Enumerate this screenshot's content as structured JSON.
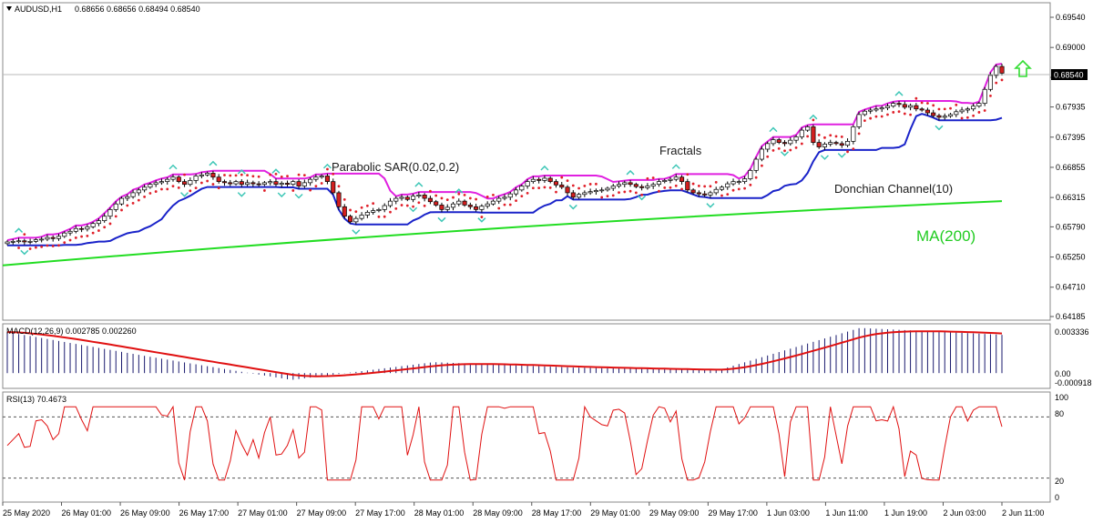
{
  "header": {
    "symbol": "AUDUSD,H1",
    "ohlc": "0.68656 0.68656 0.68494 0.68540"
  },
  "price_badge": "0.68540",
  "annotations": {
    "sar": "Parabolic SAR(0.02,0.2)",
    "fractals": "Fractals",
    "donchian": "Donchian Channel(10)",
    "ma": "MA(200)"
  },
  "macd_panel": {
    "label": "MACD(12,26,9) 0.002785 0.002260",
    "tick_top": "0.003336",
    "tick_zero": "0.00",
    "tick_bottom": "-0.000918"
  },
  "rsi_panel": {
    "label": "RSI(13) 70.4673",
    "ticks": [
      "100",
      "80",
      "20",
      "0"
    ]
  },
  "chart_data": {
    "type": "line",
    "price_ticks": [
      "0.69540",
      "0.69000",
      "0.68465",
      "0.67935",
      "0.67395",
      "0.66855",
      "0.66315",
      "0.65790",
      "0.65250",
      "0.64710",
      "0.64185"
    ],
    "x_ticks": [
      "25 May 2020",
      "26 May 01:00",
      "26 May 09:00",
      "26 May 17:00",
      "27 May 01:00",
      "27 May 09:00",
      "27 May 17:00",
      "28 May 01:00",
      "28 May 09:00",
      "28 May 17:00",
      "29 May 01:00",
      "29 May 09:00",
      "29 May 17:00",
      "1 Jun 03:00",
      "1 Jun 11:00",
      "1 Jun 19:00",
      "2 Jun 03:00",
      "2 Jun 11:00"
    ],
    "ylim": [
      0.64185,
      0.6954
    ],
    "close": [
      0.6552,
      0.6553,
      0.6554,
      0.6552,
      0.6553,
      0.6556,
      0.6557,
      0.656,
      0.6558,
      0.6562,
      0.6568,
      0.6571,
      0.6576,
      0.6575,
      0.6579,
      0.6585,
      0.659,
      0.6598,
      0.661,
      0.662,
      0.663,
      0.6633,
      0.664,
      0.6645,
      0.665,
      0.6655,
      0.6658,
      0.666,
      0.6664,
      0.6668,
      0.666,
      0.6655,
      0.6662,
      0.667,
      0.6672,
      0.6675,
      0.6668,
      0.666,
      0.6658,
      0.6656,
      0.666,
      0.6655,
      0.6658,
      0.6656,
      0.6655,
      0.6658,
      0.666,
      0.6655,
      0.6657,
      0.6655,
      0.666,
      0.6652,
      0.6658,
      0.6664,
      0.6668,
      0.667,
      0.666,
      0.664,
      0.6615,
      0.6598,
      0.6588,
      0.6594,
      0.66,
      0.6605,
      0.6608,
      0.661,
      0.6617,
      0.6625,
      0.663,
      0.6632,
      0.6628,
      0.6634,
      0.6636,
      0.663,
      0.6624,
      0.6618,
      0.661,
      0.6614,
      0.662,
      0.6625,
      0.6618,
      0.6615,
      0.661,
      0.6616,
      0.662,
      0.6625,
      0.663,
      0.6632,
      0.6638,
      0.6645,
      0.6652,
      0.666,
      0.6664,
      0.6662,
      0.6666,
      0.666,
      0.6654,
      0.665,
      0.664,
      0.6632,
      0.6637,
      0.664,
      0.6642,
      0.6644,
      0.6645,
      0.6648,
      0.6652,
      0.6655,
      0.6658,
      0.6655,
      0.6651,
      0.6649,
      0.6652,
      0.6655,
      0.666,
      0.6662,
      0.6664,
      0.6668,
      0.666,
      0.6645,
      0.664,
      0.6638,
      0.6636,
      0.664,
      0.6646,
      0.665,
      0.6656,
      0.666,
      0.666,
      0.6665,
      0.668,
      0.67,
      0.6718,
      0.6728,
      0.6735,
      0.673,
      0.6728,
      0.6734,
      0.674,
      0.6752,
      0.6758,
      0.673,
      0.6722,
      0.6727,
      0.673,
      0.6728,
      0.6725,
      0.6732,
      0.6758,
      0.678,
      0.6786,
      0.6788,
      0.679,
      0.6792,
      0.6795,
      0.68,
      0.6798,
      0.6793,
      0.6796,
      0.679,
      0.6788,
      0.6783,
      0.6778,
      0.6775,
      0.6777,
      0.678,
      0.6785,
      0.6788,
      0.679,
      0.6795,
      0.68,
      0.6825,
      0.685,
      0.6866,
      0.6854
    ],
    "ma200": {
      "start": 0.651,
      "mid": 0.658,
      "end": 0.6625
    },
    "macd": {
      "ylim": [
        -0.000918,
        0.003336
      ],
      "hist_peaks": [
        0.003,
        0.0012,
        -0.0005,
        0.0008,
        0.0004,
        0.0002,
        0.0033,
        0.0028
      ]
    },
    "rsi": {
      "ylim": [
        0,
        100
      ],
      "levels": [
        20,
        80
      ],
      "last": 70.4673
    }
  },
  "colors": {
    "up_candle": "#ffffff",
    "down_candle": "#d21f1f",
    "candle_border": "#000000",
    "donchian_upper": "#e020e0",
    "donchian_lower": "#1a23c9",
    "sar": "#e0202a",
    "ma": "#22dd22",
    "fractal": "#3fc7b7",
    "macd_hist": "#1a1a6e",
    "macd_signal": "#e01010",
    "rsi": "#e01010",
    "arrow": "#33dd33"
  }
}
